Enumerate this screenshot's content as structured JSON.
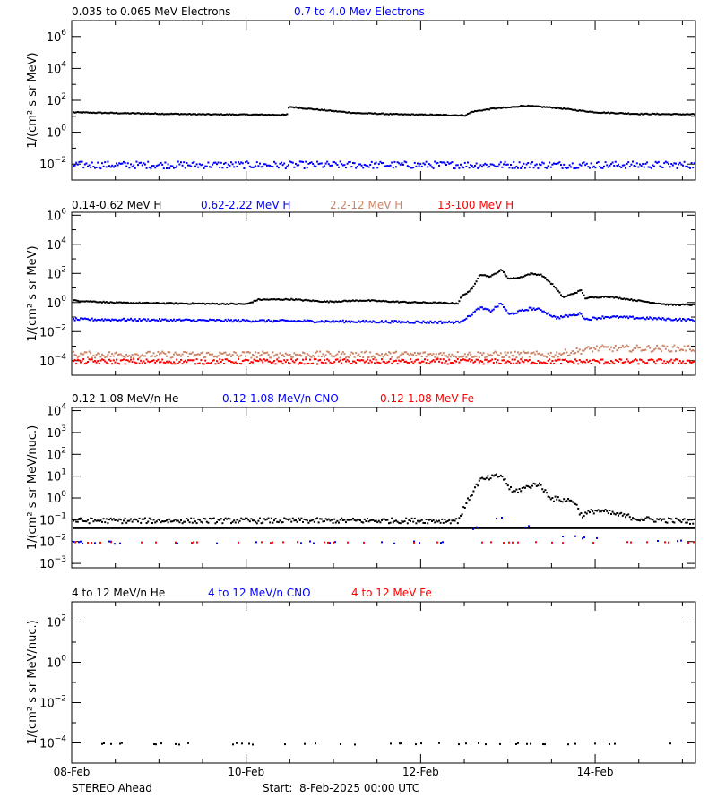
{
  "x_axis": {
    "xlim": [
      "2025-02-08T00:00",
      "2025-02-15T03:36"
    ],
    "major_ticks": [
      "2025-02-08T00:00",
      "2025-02-10T00:00",
      "2025-02-12T00:00",
      "2025-02-14T00:00"
    ],
    "tick_labels": [
      "08-Feb",
      "10-Feb",
      "12-Feb",
      "14-Feb"
    ],
    "minor_tick_interval_hours": 12
  },
  "footer": {
    "spacecraft": "STEREO Ahead",
    "start": "Start:  8-Feb-2025 00:00 UTC"
  },
  "chart_data": [
    {
      "type": "scatter",
      "yscale": "log",
      "ylabel": "1/(cm² s sr MeV)",
      "ylim": [
        0.001,
        10000000
      ],
      "ytick_exponents": [
        -2,
        0,
        2,
        4,
        6
      ],
      "series": [
        {
          "name": "0.035 to 0.065 MeV Electrons",
          "color": "#000000",
          "density": "dense",
          "points": [
            [
              "2025-02-08T00:00",
              20
            ],
            [
              "2025-02-08T12:00",
              18
            ],
            [
              "2025-02-09T12:00",
              15
            ],
            [
              "2025-02-10T11:00",
              14
            ],
            [
              "2025-02-10T11:30",
              45
            ],
            [
              "2025-02-10T16:00",
              35
            ],
            [
              "2025-02-11T06:00",
              18
            ],
            [
              "2025-02-11T18:00",
              15
            ],
            [
              "2025-02-12T12:00",
              13
            ],
            [
              "2025-02-12T14:00",
              22
            ],
            [
              "2025-02-12T20:00",
              35
            ],
            [
              "2025-02-13T00:00",
              40
            ],
            [
              "2025-02-13T04:00",
              52
            ],
            [
              "2025-02-13T12:00",
              40
            ],
            [
              "2025-02-14T00:00",
              20
            ],
            [
              "2025-02-14T12:00",
              16
            ],
            [
              "2025-02-15T03:36",
              15
            ]
          ]
        },
        {
          "name": "0.7 to 4.0 Mev Electrons",
          "color": "#0000ff",
          "density": "dense",
          "points": [
            [
              "2025-02-08T00:00",
              0.01
            ],
            [
              "2025-02-15T03:36",
              0.01
            ]
          ]
        }
      ]
    },
    {
      "type": "scatter",
      "yscale": "log",
      "ylabel": "1/(cm² s sr MeV)",
      "ylim": [
        1e-05,
        1600000
      ],
      "ytick_exponents": [
        -4,
        -2,
        0,
        2,
        4,
        6
      ],
      "series": [
        {
          "name": "0.14-0.62 MeV H",
          "color": "#000000",
          "density": "dense",
          "points": [
            [
              "2025-02-08T00:00",
              1.6
            ],
            [
              "2025-02-08T12:00",
              1.1
            ],
            [
              "2025-02-09T12:00",
              0.95
            ],
            [
              "2025-02-10T00:00",
              0.9
            ],
            [
              "2025-02-10T03:00",
              1.8
            ],
            [
              "2025-02-10T12:00",
              1.9
            ],
            [
              "2025-02-10T22:00",
              1.3
            ],
            [
              "2025-02-11T08:00",
              1.6
            ],
            [
              "2025-02-11T20:00",
              1.2
            ],
            [
              "2025-02-12T10:00",
              1.0
            ],
            [
              "2025-02-12T11:00",
              3
            ],
            [
              "2025-02-12T14:00",
              10
            ],
            [
              "2025-02-12T16:00",
              100
            ],
            [
              "2025-02-12T19:00",
              70
            ],
            [
              "2025-02-12T22:00",
              200
            ],
            [
              "2025-02-13T00:00",
              50
            ],
            [
              "2025-02-13T03:00",
              60
            ],
            [
              "2025-02-13T06:00",
              110
            ],
            [
              "2025-02-13T09:00",
              90
            ],
            [
              "2025-02-13T12:00",
              20
            ],
            [
              "2025-02-13T15:00",
              2.6
            ],
            [
              "2025-02-13T18:00",
              5
            ],
            [
              "2025-02-13T20:00",
              8
            ],
            [
              "2025-02-13T21:00",
              2.3
            ],
            [
              "2025-02-14T03:00",
              3
            ],
            [
              "2025-02-14T12:00",
              1.5
            ],
            [
              "2025-02-14T20:00",
              0.8
            ],
            [
              "2025-02-15T03:36",
              0.8
            ]
          ]
        },
        {
          "name": "0.62-2.22 MeV H",
          "color": "#0000ff",
          "density": "dense",
          "points": [
            [
              "2025-02-08T00:00",
              0.08
            ],
            [
              "2025-02-12T10:00",
              0.05
            ],
            [
              "2025-02-12T13:00",
              0.12
            ],
            [
              "2025-02-12T16:00",
              0.5
            ],
            [
              "2025-02-12T19:00",
              0.3
            ],
            [
              "2025-02-12T22:00",
              1.0
            ],
            [
              "2025-02-13T00:00",
              0.17
            ],
            [
              "2025-02-13T06:00",
              0.45
            ],
            [
              "2025-02-13T09:00",
              0.35
            ],
            [
              "2025-02-13T13:00",
              0.1
            ],
            [
              "2025-02-13T20:00",
              0.2
            ],
            [
              "2025-02-13T21:00",
              0.08
            ],
            [
              "2025-02-14T03:00",
              0.12
            ],
            [
              "2025-02-15T03:36",
              0.07
            ]
          ]
        },
        {
          "name": "2.2-12 MeV H",
          "color": "#cc8466",
          "density": "dense",
          "points": [
            [
              "2025-02-08T00:00",
              0.0003
            ],
            [
              "2025-02-13T12:00",
              0.0003
            ],
            [
              "2025-02-14T00:00",
              0.0008
            ],
            [
              "2025-02-15T03:36",
              0.0008
            ]
          ]
        },
        {
          "name": "13-100 MeV H",
          "color": "#ff0000",
          "density": "dense",
          "points": [
            [
              "2025-02-08T00:00",
              0.0001
            ],
            [
              "2025-02-15T03:36",
              0.0001
            ]
          ]
        }
      ]
    },
    {
      "type": "scatter",
      "yscale": "log",
      "ylabel": "1/(cm² s sr MeV/nuc.)",
      "ylim": [
        0.00063,
        14000
      ],
      "ytick_exponents": [
        -3,
        -2,
        -1,
        0,
        1,
        2,
        3,
        4
      ],
      "series": [
        {
          "name": "0.12-1.08 MeV/n He",
          "color": "#000000",
          "density": "dense",
          "baseline": 0.045,
          "points": [
            [
              "2025-02-08T00:00",
              0.1
            ],
            [
              "2025-02-12T10:00",
              0.1
            ],
            [
              "2025-02-12T13:00",
              1
            ],
            [
              "2025-02-12T16:00",
              7
            ],
            [
              "2025-02-12T22:00",
              12
            ],
            [
              "2025-02-13T01:00",
              2
            ],
            [
              "2025-02-13T08:00",
              5
            ],
            [
              "2025-02-13T12:00",
              1
            ],
            [
              "2025-02-13T18:00",
              0.8
            ],
            [
              "2025-02-13T20:00",
              0.17
            ],
            [
              "2025-02-14T00:00",
              0.3
            ],
            [
              "2025-02-14T12:00",
              0.12
            ],
            [
              "2025-02-15T03:36",
              0.09
            ]
          ]
        },
        {
          "name": "0.12-1.08 MeV/n CNO",
          "color": "#0000ff",
          "density": "sparse",
          "points": [
            [
              "2025-02-08T00:00",
              0.01
            ],
            [
              "2025-02-12T10:00",
              0.01
            ],
            [
              "2025-02-12T14:00",
              0.04
            ],
            [
              "2025-02-12T22:00",
              0.15
            ],
            [
              "2025-02-13T01:00",
              0.04
            ],
            [
              "2025-02-13T08:00",
              0.06
            ],
            [
              "2025-02-13T12:00",
              0.02
            ],
            [
              "2025-02-15T03:36",
              0.01
            ]
          ]
        },
        {
          "name": "0.12-1.08 MeV Fe",
          "color": "#ff0000",
          "density": "sparse",
          "points": [
            [
              "2025-02-08T00:00",
              0.01
            ],
            [
              "2025-02-15T03:36",
              0.01
            ]
          ]
        }
      ]
    },
    {
      "type": "scatter",
      "yscale": "log",
      "ylabel": "1/(cm² s sr MeV/nuc.)",
      "ylim": [
        1e-05,
        1000
      ],
      "ytick_exponents": [
        -4,
        -2,
        0,
        2
      ],
      "series": [
        {
          "name": "4 to 12 MeV/n He",
          "color": "#000000",
          "density": "sparse",
          "points": [
            [
              "2025-02-08T00:00",
              0.0001
            ],
            [
              "2025-02-15T03:36",
              0.0001
            ]
          ]
        },
        {
          "name": "4 to 12 MeV/n CNO",
          "color": "#0000ff",
          "density": "sparse",
          "points": []
        },
        {
          "name": "4 to 12 MeV Fe",
          "color": "#ff0000",
          "density": "sparse",
          "points": []
        }
      ]
    }
  ]
}
